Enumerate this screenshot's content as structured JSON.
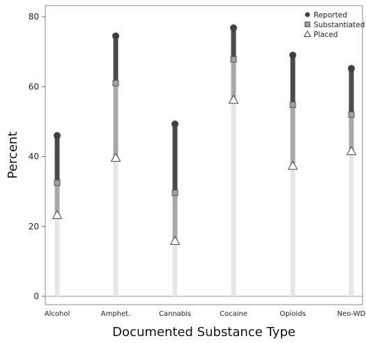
{
  "chart_data": {
    "type": "range-dot",
    "xlabel": "Documented Substance Type",
    "ylabel": "Percent",
    "ylim": [
      0,
      82
    ],
    "yticks": [
      0,
      20,
      40,
      60,
      80
    ],
    "categories": [
      "Alcohol",
      "Amphet.",
      "Cannabis",
      "Cocaine",
      "Opioids",
      "Neo-WD"
    ],
    "series": [
      {
        "name": "Reported",
        "marker": "circle",
        "color": "#404040",
        "values": [
          46,
          74.5,
          49.3,
          76.8,
          69,
          65.2
        ]
      },
      {
        "name": "Substantiated",
        "marker": "square",
        "color": "#a0a0a0",
        "values": [
          32.5,
          61,
          29.6,
          67.8,
          54.8,
          52
        ]
      },
      {
        "name": "Placed",
        "marker": "triangle",
        "color": "#ffffff",
        "values": [
          23.2,
          39.6,
          15.8,
          56.2,
          37.3,
          41.5
        ]
      }
    ],
    "bar_colors": {
      "reported_segment": "#4a4a4a",
      "substantiated_segment": "#a8a8a8",
      "placed_segment": "#e6e6e6"
    },
    "legend_position": "top-right",
    "grid": false
  }
}
